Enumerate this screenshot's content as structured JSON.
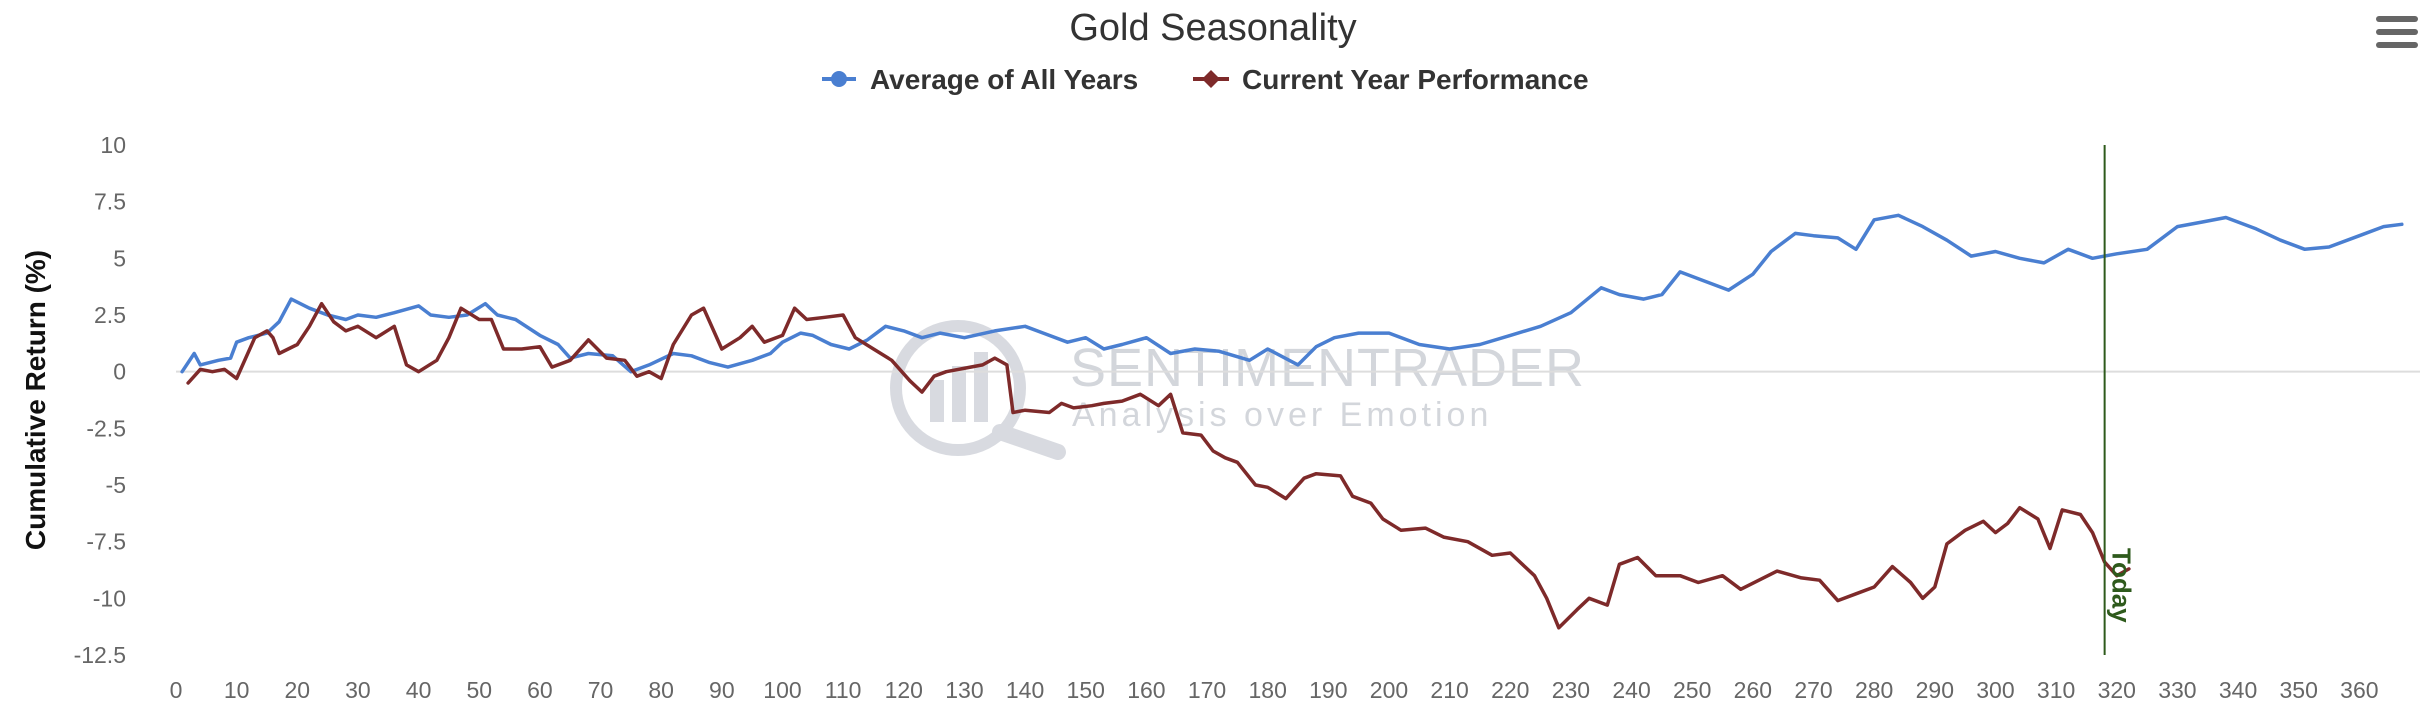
{
  "chart_data": {
    "type": "line",
    "title": "Gold Seasonality",
    "ylabel": "Cumulative Return (%)",
    "xlabel": "",
    "xlim": [
      0,
      370
    ],
    "ylim": [
      -12.5,
      10
    ],
    "x_ticks": [
      0,
      10,
      20,
      30,
      40,
      50,
      60,
      70,
      80,
      90,
      100,
      110,
      120,
      130,
      140,
      150,
      160,
      170,
      180,
      190,
      200,
      210,
      220,
      230,
      240,
      250,
      260,
      270,
      280,
      290,
      300,
      310,
      320,
      330,
      340,
      350,
      360
    ],
    "y_ticks": [
      10,
      7.5,
      5,
      2.5,
      0,
      -2.5,
      -5,
      -7.5,
      -10,
      -12.5
    ],
    "y_tick_labels": [
      "10",
      "7.5",
      "5",
      "2.5",
      "0",
      "-2.5",
      "-5",
      "-7.5",
      "-10",
      "-12.5"
    ],
    "grid": false,
    "legend": "top-center",
    "today_marker": {
      "x": 318,
      "label": "Today",
      "color": "#2e5a1c"
    },
    "series": [
      {
        "name": "Average of All Years",
        "color": "#4a7fd1",
        "marker": "circle",
        "points": [
          [
            1,
            0
          ],
          [
            3,
            0.8
          ],
          [
            4,
            0.3
          ],
          [
            7,
            0.5
          ],
          [
            9,
            0.6
          ],
          [
            10,
            1.3
          ],
          [
            12,
            1.5
          ],
          [
            15,
            1.7
          ],
          [
            17,
            2.2
          ],
          [
            19,
            3.2
          ],
          [
            22,
            2.8
          ],
          [
            25,
            2.5
          ],
          [
            28,
            2.3
          ],
          [
            30,
            2.5
          ],
          [
            33,
            2.4
          ],
          [
            36,
            2.6
          ],
          [
            40,
            2.9
          ],
          [
            42,
            2.5
          ],
          [
            45,
            2.4
          ],
          [
            48,
            2.5
          ],
          [
            51,
            3.0
          ],
          [
            53,
            2.5
          ],
          [
            56,
            2.3
          ],
          [
            60,
            1.6
          ],
          [
            63,
            1.2
          ],
          [
            65,
            0.6
          ],
          [
            68,
            0.8
          ],
          [
            72,
            0.7
          ],
          [
            75,
            0.0
          ],
          [
            78,
            0.3
          ],
          [
            82,
            0.8
          ],
          [
            85,
            0.7
          ],
          [
            88,
            0.4
          ],
          [
            91,
            0.2
          ],
          [
            95,
            0.5
          ],
          [
            98,
            0.8
          ],
          [
            100,
            1.3
          ],
          [
            103,
            1.7
          ],
          [
            105,
            1.6
          ],
          [
            108,
            1.2
          ],
          [
            111,
            1.0
          ],
          [
            114,
            1.4
          ],
          [
            117,
            2.0
          ],
          [
            120,
            1.8
          ],
          [
            123,
            1.5
          ],
          [
            126,
            1.7
          ],
          [
            130,
            1.5
          ],
          [
            135,
            1.8
          ],
          [
            140,
            2.0
          ],
          [
            143,
            1.7
          ],
          [
            147,
            1.3
          ],
          [
            150,
            1.5
          ],
          [
            153,
            1.0
          ],
          [
            156,
            1.2
          ],
          [
            160,
            1.5
          ],
          [
            164,
            0.8
          ],
          [
            168,
            1.0
          ],
          [
            172,
            0.9
          ],
          [
            177,
            0.5
          ],
          [
            180,
            1.0
          ],
          [
            185,
            0.3
          ],
          [
            188,
            1.1
          ],
          [
            191,
            1.5
          ],
          [
            195,
            1.7
          ],
          [
            200,
            1.7
          ],
          [
            205,
            1.2
          ],
          [
            210,
            1.0
          ],
          [
            215,
            1.2
          ],
          [
            220,
            1.6
          ],
          [
            225,
            2.0
          ],
          [
            230,
            2.6
          ],
          [
            235,
            3.7
          ],
          [
            238,
            3.4
          ],
          [
            242,
            3.2
          ],
          [
            245,
            3.4
          ],
          [
            248,
            4.4
          ],
          [
            252,
            4.0
          ],
          [
            256,
            3.6
          ],
          [
            260,
            4.3
          ],
          [
            263,
            5.3
          ],
          [
            267,
            6.1
          ],
          [
            270,
            6.0
          ],
          [
            274,
            5.9
          ],
          [
            277,
            5.4
          ],
          [
            280,
            6.7
          ],
          [
            284,
            6.9
          ],
          [
            288,
            6.4
          ],
          [
            292,
            5.8
          ],
          [
            296,
            5.1
          ],
          [
            300,
            5.3
          ],
          [
            304,
            5.0
          ],
          [
            308,
            4.8
          ],
          [
            312,
            5.4
          ],
          [
            316,
            5.0
          ],
          [
            320,
            5.2
          ],
          [
            325,
            5.4
          ],
          [
            330,
            6.4
          ],
          [
            334,
            6.6
          ],
          [
            338,
            6.8
          ],
          [
            343,
            6.3
          ],
          [
            347,
            5.8
          ],
          [
            351,
            5.4
          ],
          [
            355,
            5.5
          ],
          [
            360,
            6.0
          ],
          [
            364,
            6.4
          ],
          [
            367,
            6.5
          ]
        ]
      },
      {
        "name": "Current Year Performance",
        "color": "#7e2a2a",
        "marker": "diamond",
        "points": [
          [
            2,
            -0.5
          ],
          [
            4,
            0.1
          ],
          [
            6,
            0.0
          ],
          [
            8,
            0.1
          ],
          [
            10,
            -0.3
          ],
          [
            13,
            1.5
          ],
          [
            15,
            1.8
          ],
          [
            16,
            1.5
          ],
          [
            17,
            0.8
          ],
          [
            20,
            1.2
          ],
          [
            22,
            2.0
          ],
          [
            24,
            3.0
          ],
          [
            26,
            2.2
          ],
          [
            28,
            1.8
          ],
          [
            30,
            2.0
          ],
          [
            33,
            1.5
          ],
          [
            36,
            2.0
          ],
          [
            38,
            0.3
          ],
          [
            40,
            0.0
          ],
          [
            43,
            0.5
          ],
          [
            45,
            1.5
          ],
          [
            47,
            2.8
          ],
          [
            50,
            2.3
          ],
          [
            52,
            2.3
          ],
          [
            54,
            1.0
          ],
          [
            57,
            1.0
          ],
          [
            60,
            1.1
          ],
          [
            62,
            0.2
          ],
          [
            65,
            0.5
          ],
          [
            68,
            1.4
          ],
          [
            71,
            0.6
          ],
          [
            74,
            0.5
          ],
          [
            76,
            -0.2
          ],
          [
            78,
            0.0
          ],
          [
            80,
            -0.3
          ],
          [
            82,
            1.2
          ],
          [
            85,
            2.5
          ],
          [
            87,
            2.8
          ],
          [
            90,
            1.0
          ],
          [
            93,
            1.5
          ],
          [
            95,
            2.0
          ],
          [
            97,
            1.3
          ],
          [
            100,
            1.6
          ],
          [
            102,
            2.8
          ],
          [
            104,
            2.3
          ],
          [
            107,
            2.4
          ],
          [
            110,
            2.5
          ],
          [
            112,
            1.5
          ],
          [
            115,
            1.0
          ],
          [
            118,
            0.5
          ],
          [
            121,
            -0.4
          ],
          [
            123,
            -0.9
          ],
          [
            125,
            -0.2
          ],
          [
            127,
            0.0
          ],
          [
            131,
            0.2
          ],
          [
            133,
            0.3
          ],
          [
            135,
            0.6
          ],
          [
            137,
            0.3
          ],
          [
            138,
            -1.8
          ],
          [
            140,
            -1.7
          ],
          [
            144,
            -1.8
          ],
          [
            146,
            -1.4
          ],
          [
            148,
            -1.6
          ],
          [
            151,
            -1.5
          ],
          [
            153,
            -1.4
          ],
          [
            156,
            -1.3
          ],
          [
            159,
            -1.0
          ],
          [
            162,
            -1.5
          ],
          [
            164,
            -1.0
          ],
          [
            166,
            -2.7
          ],
          [
            169,
            -2.8
          ],
          [
            171,
            -3.5
          ],
          [
            173,
            -3.8
          ],
          [
            175,
            -4.0
          ],
          [
            178,
            -5.0
          ],
          [
            180,
            -5.1
          ],
          [
            183,
            -5.6
          ],
          [
            186,
            -4.7
          ],
          [
            188,
            -4.5
          ],
          [
            192,
            -4.6
          ],
          [
            194,
            -5.5
          ],
          [
            197,
            -5.8
          ],
          [
            199,
            -6.5
          ],
          [
            202,
            -7.0
          ],
          [
            206,
            -6.9
          ],
          [
            209,
            -7.3
          ],
          [
            213,
            -7.5
          ],
          [
            217,
            -8.1
          ],
          [
            220,
            -8.0
          ],
          [
            224,
            -9.0
          ],
          [
            226,
            -10.0
          ],
          [
            228,
            -11.3
          ],
          [
            231,
            -10.5
          ],
          [
            233,
            -10.0
          ],
          [
            236,
            -10.3
          ],
          [
            238,
            -8.5
          ],
          [
            241,
            -8.2
          ],
          [
            244,
            -9.0
          ],
          [
            248,
            -9.0
          ],
          [
            251,
            -9.3
          ],
          [
            255,
            -9.0
          ],
          [
            258,
            -9.6
          ],
          [
            261,
            -9.2
          ],
          [
            264,
            -8.8
          ],
          [
            268,
            -9.1
          ],
          [
            271,
            -9.2
          ],
          [
            274,
            -10.1
          ],
          [
            277,
            -9.8
          ],
          [
            280,
            -9.5
          ],
          [
            283,
            -8.6
          ],
          [
            286,
            -9.3
          ],
          [
            288,
            -10.0
          ],
          [
            290,
            -9.5
          ],
          [
            292,
            -7.6
          ],
          [
            295,
            -7.0
          ],
          [
            298,
            -6.6
          ],
          [
            300,
            -7.1
          ],
          [
            302,
            -6.7
          ],
          [
            304,
            -6.0
          ],
          [
            307,
            -6.5
          ],
          [
            309,
            -7.8
          ],
          [
            311,
            -6.1
          ],
          [
            314,
            -6.3
          ],
          [
            316,
            -7.1
          ],
          [
            318,
            -8.4
          ],
          [
            320,
            -9.0
          ],
          [
            322,
            -8.7
          ]
        ]
      }
    ]
  },
  "watermark": {
    "brand": "SENTIMENTRADER",
    "tagline": "Analysis over Emotion"
  },
  "menu": {
    "icon": "hamburger-menu-icon"
  }
}
